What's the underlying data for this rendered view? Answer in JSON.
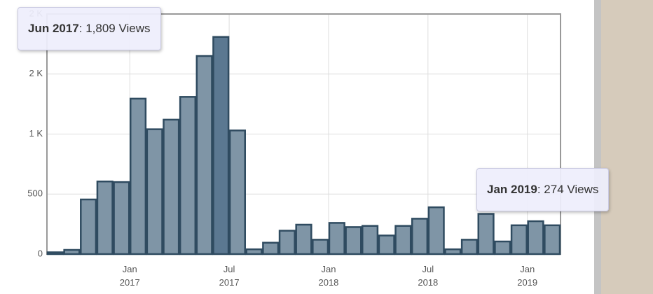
{
  "chart_data": {
    "type": "bar",
    "categories": [
      null,
      null,
      null,
      null,
      null,
      "Jan 2017",
      null,
      null,
      null,
      null,
      null,
      "Jul 2017",
      null,
      null,
      null,
      null,
      null,
      "Jan 2018",
      null,
      null,
      null,
      null,
      null,
      "Jul 2018",
      null,
      null,
      null,
      null,
      null,
      "Jan 2019",
      null
    ],
    "values": [
      15,
      35,
      455,
      605,
      600,
      1295,
      1040,
      1120,
      1310,
      1650,
      1809,
      1030,
      40,
      95,
      195,
      245,
      120,
      260,
      225,
      235,
      155,
      235,
      295,
      390,
      40,
      120,
      335,
      105,
      240,
      274,
      240
    ],
    "color": "#7f95a6",
    "highlight_color": "#5b7891",
    "edge_color": "#2f4b60",
    "ylim": [
      0,
      2000
    ],
    "yticks": [
      0,
      500,
      {
        "value": 1000,
        "label": "1 K"
      },
      {
        "value": 1500,
        "label": "2 K"
      },
      {
        "value": 2000,
        "label": "2 K"
      }
    ],
    "grid": true,
    "tooltips": [
      {
        "index": 10,
        "month": "Jun 2017",
        "text": ": 1,809 Views"
      },
      {
        "index": 29,
        "month": "Jan 2019",
        "text": ": 274 Views"
      }
    ]
  }
}
